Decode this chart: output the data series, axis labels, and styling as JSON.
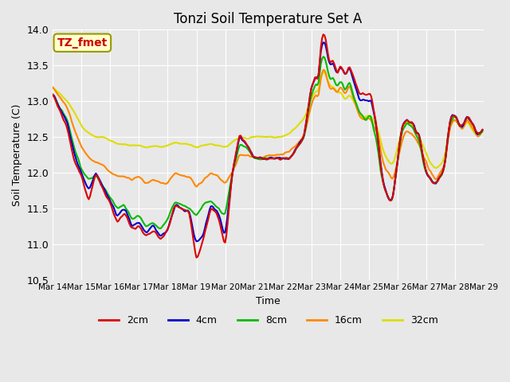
{
  "title": "Tonzi Soil Temperature Set A",
  "xlabel": "Time",
  "ylabel": "Soil Temperature (C)",
  "ylim": [
    10.5,
    14.0
  ],
  "background_color": "#e8e8e8",
  "annotation_text": "TZ_fmet",
  "annotation_color": "#cc0000",
  "annotation_bg": "#ffffcc",
  "annotation_border": "#999900",
  "series_colors": {
    "2cm": "#dd0000",
    "4cm": "#0000cc",
    "8cm": "#00bb00",
    "16cm": "#ff8800",
    "32cm": "#dddd00"
  },
  "xtick_labels": [
    "Mar 14",
    "Mar 15",
    "Mar 16",
    "Mar 17",
    "Mar 18",
    "Mar 19",
    "Mar 20",
    "Mar 21",
    "Mar 22",
    "Mar 23",
    "Mar 24",
    "Mar 25",
    "Mar 26",
    "Mar 27",
    "Mar 28",
    "Mar 29"
  ],
  "yticks": [
    10.5,
    11.0,
    11.5,
    12.0,
    12.5,
    13.0,
    13.5,
    14.0
  ],
  "lw": 1.5
}
